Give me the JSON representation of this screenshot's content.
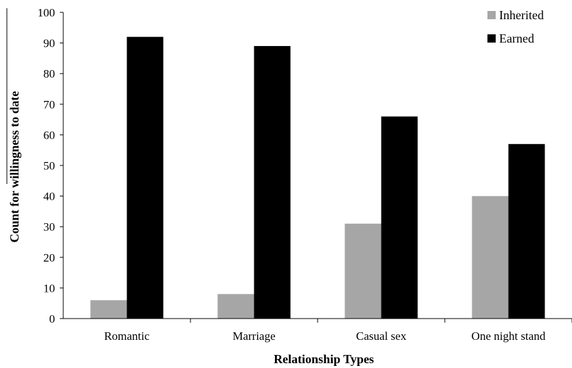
{
  "chart_data": {
    "type": "bar",
    "title": "",
    "xlabel": "Relationship Types",
    "ylabel": "Count for willingness to date",
    "categories": [
      "Romantic",
      "Marriage",
      "Casual sex",
      "One night stand"
    ],
    "series": [
      {
        "name": "Inherited",
        "values": [
          6,
          8,
          31,
          40
        ],
        "color": "#a6a6a6"
      },
      {
        "name": "Earned",
        "values": [
          92,
          89,
          66,
          57
        ],
        "color": "#000000"
      }
    ],
    "ylim": [
      0,
      100
    ],
    "yticks": [
      "0",
      "10",
      "20",
      "30",
      "40",
      "50",
      "60",
      "70",
      "80",
      "90",
      "100"
    ],
    "grid": false,
    "legend": "top-right"
  }
}
